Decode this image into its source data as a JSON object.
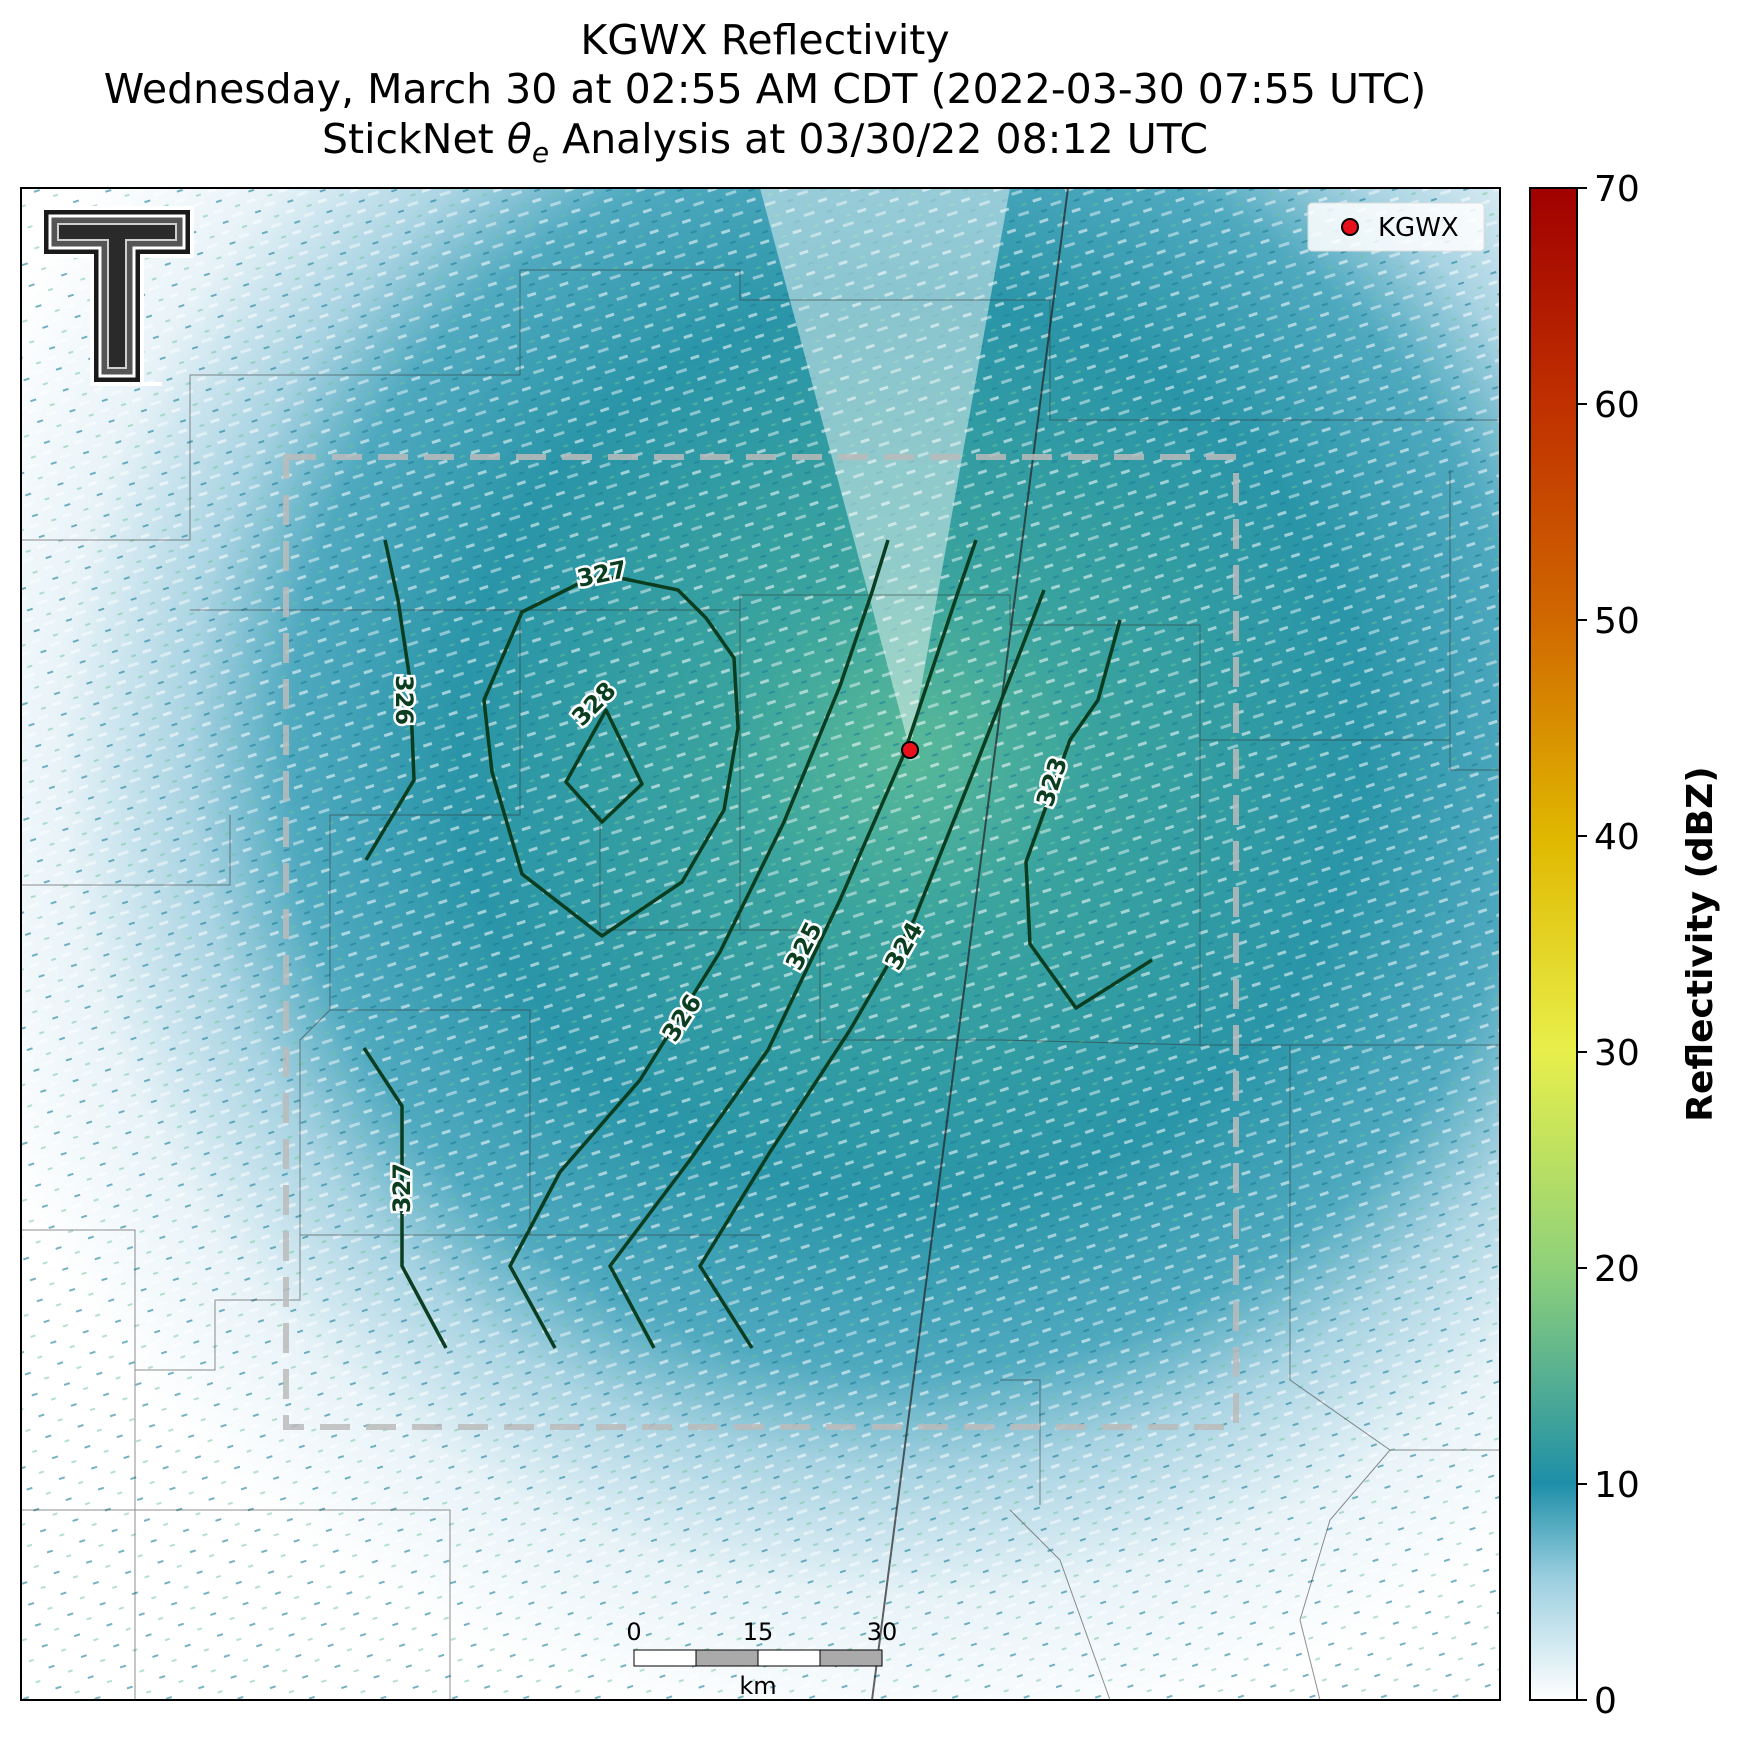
{
  "title": {
    "line1": "KGWX Reflectivity",
    "line2": "Wednesday, March 30 at 02:55 AM CDT (2022-03-30 07:55 UTC)",
    "line3_prefix": "StickNet ",
    "line3_symbol": "θ",
    "line3_subscript": "e",
    "line3_suffix": " Analysis at 03/30/22 08:12 UTC"
  },
  "legend": {
    "station_label": "KGWX",
    "marker_color": "#e8101a"
  },
  "colorbar": {
    "label": "Reflectivity (dBZ)",
    "ticks": [
      "0",
      "10",
      "20",
      "30",
      "40",
      "50",
      "60",
      "70"
    ],
    "min": 0,
    "max": 70,
    "colors": [
      "#ffffff",
      "#1e8fa8",
      "#8fd17a",
      "#e8ef4a",
      "#e0b800",
      "#d06800",
      "#b00000"
    ]
  },
  "contours": {
    "color": "#0b3d20",
    "labels": [
      "327",
      "328",
      "326",
      "325",
      "324",
      "323",
      "326",
      "327"
    ]
  },
  "scale_bar": {
    "ticks": [
      "0",
      "15",
      "30"
    ],
    "unit": "km"
  },
  "logo": {
    "name": "Texas Tech Double T"
  }
}
